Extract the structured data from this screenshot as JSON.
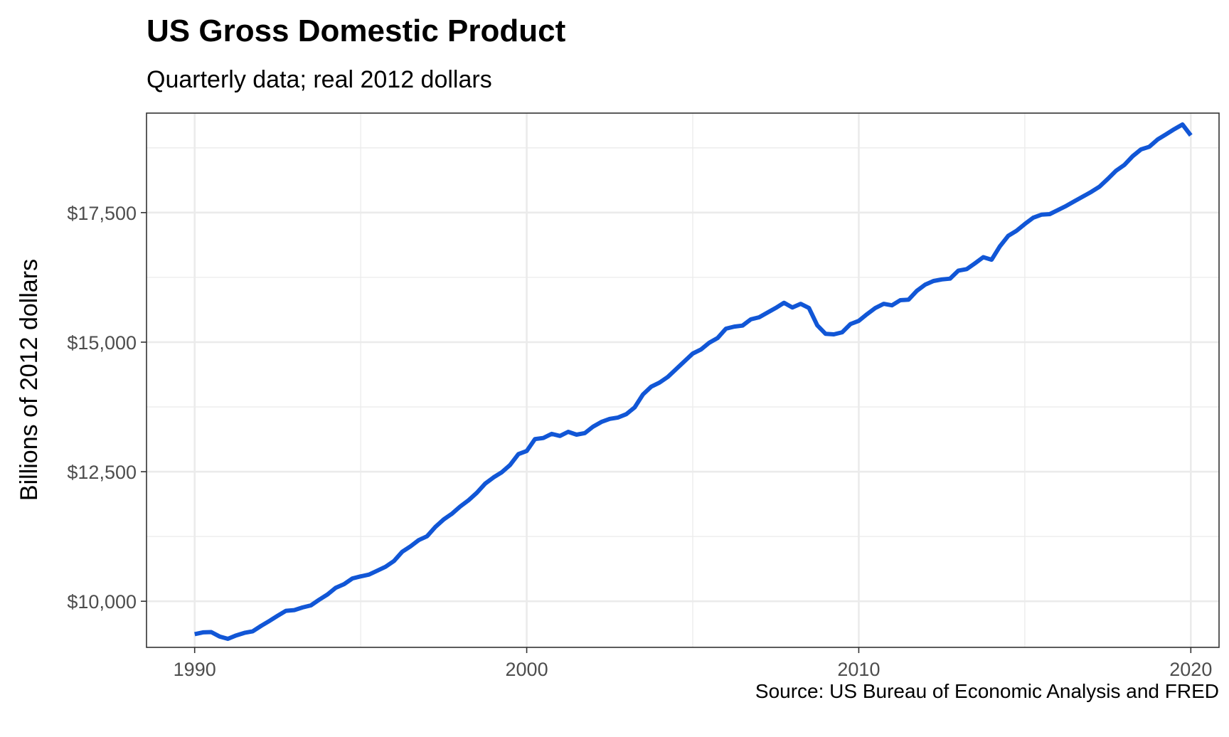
{
  "chart_data": {
    "type": "line",
    "title": "US Gross Domestic Product",
    "subtitle": "Quarterly data; real 2012 dollars",
    "xlabel": "",
    "ylabel": "Billions of 2012 dollars",
    "caption": "Source: US Bureau of Economic Analysis and FRED",
    "xlim": [
      1988.55,
      2020.85
    ],
    "ylim": [
      9110,
      19420
    ],
    "x_ticks": [
      1990,
      2000,
      2010,
      2020
    ],
    "x_tick_labels": [
      "1990",
      "2000",
      "2010",
      "2020"
    ],
    "y_ticks": [
      10000,
      12500,
      15000,
      17500
    ],
    "y_tick_labels": [
      "$10,000",
      "$12,500",
      "$15,000",
      "$17,500"
    ],
    "grid": true,
    "colors": {
      "line": "#1156d6",
      "grid": "#ebebeb",
      "panel_border": "#333333"
    },
    "series": [
      {
        "name": "",
        "x": [
          1990.0,
          1990.25,
          1990.5,
          1990.75,
          1991.0,
          1991.25,
          1991.5,
          1991.75,
          1992.0,
          1992.25,
          1992.5,
          1992.75,
          1993.0,
          1993.25,
          1993.5,
          1993.75,
          1994.0,
          1994.25,
          1994.5,
          1994.75,
          1995.0,
          1995.25,
          1995.5,
          1995.75,
          1996.0,
          1996.25,
          1996.5,
          1996.75,
          1997.0,
          1997.25,
          1997.5,
          1997.75,
          1998.0,
          1998.25,
          1998.5,
          1998.75,
          1999.0,
          1999.25,
          1999.5,
          1999.75,
          2000.0,
          2000.25,
          2000.5,
          2000.75,
          2001.0,
          2001.25,
          2001.5,
          2001.75,
          2002.0,
          2002.25,
          2002.5,
          2002.75,
          2003.0,
          2003.25,
          2003.5,
          2003.75,
          2004.0,
          2004.25,
          2004.5,
          2004.75,
          2005.0,
          2005.25,
          2005.5,
          2005.75,
          2006.0,
          2006.25,
          2006.5,
          2006.75,
          2007.0,
          2007.25,
          2007.5,
          2007.75,
          2008.0,
          2008.25,
          2008.5,
          2008.75,
          2009.0,
          2009.25,
          2009.5,
          2009.75,
          2010.0,
          2010.25,
          2010.5,
          2010.75,
          2011.0,
          2011.25,
          2011.5,
          2011.75,
          2012.0,
          2012.25,
          2012.5,
          2012.75,
          2013.0,
          2013.25,
          2013.5,
          2013.75,
          2014.0,
          2014.25,
          2014.5,
          2014.75,
          2015.0,
          2015.25,
          2015.5,
          2015.75,
          2016.0,
          2016.25,
          2016.5,
          2016.75,
          2017.0,
          2017.25,
          2017.5,
          2017.75,
          2018.0,
          2018.25,
          2018.5,
          2018.75,
          2019.0,
          2019.25,
          2019.5,
          2019.75,
          2020.0
        ],
        "y": [
          9365,
          9400,
          9405,
          9320,
          9275,
          9340,
          9390,
          9420,
          9525,
          9620,
          9720,
          9815,
          9830,
          9880,
          9920,
          10030,
          10130,
          10260,
          10330,
          10440,
          10480,
          10515,
          10590,
          10665,
          10775,
          10955,
          11060,
          11180,
          11255,
          11435,
          11580,
          11690,
          11830,
          11950,
          12095,
          12270,
          12390,
          12490,
          12630,
          12840,
          12900,
          13130,
          13150,
          13230,
          13190,
          13270,
          13215,
          13245,
          13370,
          13460,
          13520,
          13545,
          13610,
          13740,
          13990,
          14140,
          14220,
          14330,
          14480,
          14630,
          14780,
          14860,
          14990,
          15080,
          15260,
          15300,
          15320,
          15440,
          15480,
          15570,
          15660,
          15760,
          15670,
          15740,
          15660,
          15325,
          15160,
          15150,
          15190,
          15350,
          15410,
          15540,
          15660,
          15740,
          15710,
          15810,
          15820,
          15990,
          16110,
          16180,
          16210,
          16225,
          16380,
          16410,
          16520,
          16640,
          16590,
          16850,
          17050,
          17150,
          17280,
          17400,
          17460,
          17470,
          17550,
          17630,
          17720,
          17810,
          17900,
          18000,
          18150,
          18310,
          18420,
          18590,
          18720,
          18770,
          18910,
          19010,
          19110,
          19200,
          18990
        ]
      }
    ]
  }
}
